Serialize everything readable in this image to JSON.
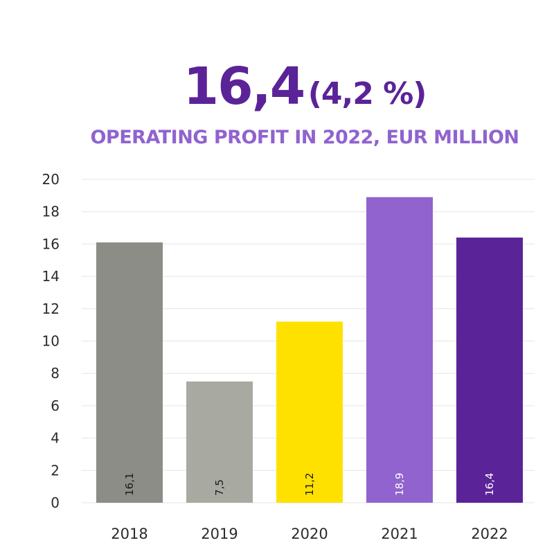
{
  "header": {
    "headline_value": "16,4",
    "headline_percent": "(4,2 %)"
  },
  "chart_data": {
    "type": "bar",
    "title": "OPERATING PROFIT IN 2022, EUR MILLION",
    "categories": [
      "2018",
      "2019",
      "2020",
      "2021",
      "2022"
    ],
    "values": [
      16.1,
      7.5,
      11.2,
      18.9,
      16.4
    ],
    "data_labels": [
      "16,1",
      "7,5",
      "11,2",
      "18,9",
      "16,4"
    ],
    "colors": [
      "#8c8d86",
      "#a8aaa2",
      "#ffe100",
      "#9063cf",
      "#5b2398"
    ],
    "data_label_colors": [
      "#1a1a1a",
      "#1a1a1a",
      "#1a1a1a",
      "#ffffff",
      "#ffffff"
    ],
    "ylim": [
      0,
      20
    ],
    "yticks": [
      0,
      2,
      4,
      6,
      8,
      10,
      12,
      14,
      16,
      18,
      20
    ],
    "grid": true,
    "legend": "none"
  }
}
